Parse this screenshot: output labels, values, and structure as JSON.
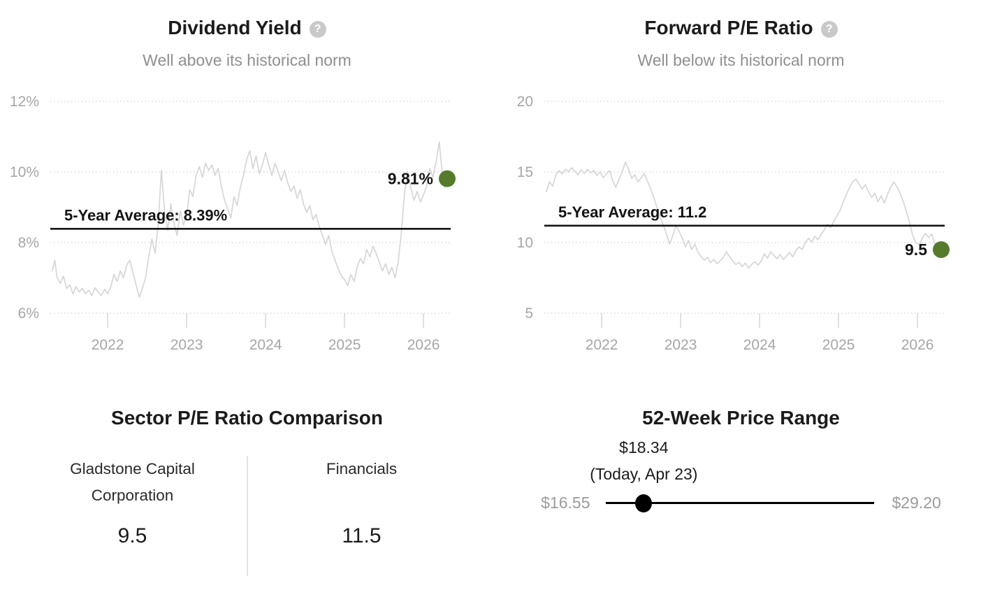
{
  "colors": {
    "accent_green": "#567b2d",
    "series_gray": "#d6d6d6",
    "grid_gray": "#d9d9d9",
    "axis_text": "#a6a6a6",
    "annotation_black": "#141414"
  },
  "help_icon_glyph": "?",
  "chart_data": [
    {
      "type": "line",
      "id": "dividend_yield",
      "title": "Dividend Yield",
      "subtitle": "Well above its historical norm",
      "grid": "dotted-horizontal",
      "legend": "none",
      "xlim": [
        2021.3,
        2026.3
      ],
      "x_ticks": [
        {
          "year": 2022,
          "label": "2022"
        },
        {
          "year": 2023,
          "label": "2023"
        },
        {
          "year": 2024,
          "label": "2024"
        },
        {
          "year": 2025,
          "label": "2025"
        },
        {
          "year": 2026,
          "label": "2026"
        }
      ],
      "y_ticks": [
        {
          "value": 12,
          "label": "12%"
        },
        {
          "value": 10,
          "label": "10%"
        },
        {
          "value": 8,
          "label": "8%"
        },
        {
          "value": 6,
          "label": "6%"
        }
      ],
      "average": {
        "value": 8.39,
        "label": "5-Year Average: 8.39%"
      },
      "current": {
        "value": 9.81,
        "label": "9.81%"
      },
      "points": [
        [
          2021.3,
          7.2
        ],
        [
          2021.33,
          7.5
        ],
        [
          2021.36,
          7.0
        ],
        [
          2021.4,
          6.85
        ],
        [
          2021.44,
          7.05
        ],
        [
          2021.48,
          6.7
        ],
        [
          2021.52,
          6.8
        ],
        [
          2021.56,
          6.55
        ],
        [
          2021.6,
          6.75
        ],
        [
          2021.64,
          6.6
        ],
        [
          2021.68,
          6.7
        ],
        [
          2021.72,
          6.55
        ],
        [
          2021.76,
          6.65
        ],
        [
          2021.8,
          6.5
        ],
        [
          2021.84,
          6.72
        ],
        [
          2021.88,
          6.6
        ],
        [
          2021.92,
          6.5
        ],
        [
          2021.96,
          6.68
        ],
        [
          2022.0,
          6.55
        ],
        [
          2022.04,
          6.75
        ],
        [
          2022.08,
          7.1
        ],
        [
          2022.12,
          6.9
        ],
        [
          2022.16,
          7.2
        ],
        [
          2022.2,
          7.0
        ],
        [
          2022.24,
          7.35
        ],
        [
          2022.28,
          7.5
        ],
        [
          2022.32,
          7.15
        ],
        [
          2022.36,
          6.8
        ],
        [
          2022.4,
          6.45
        ],
        [
          2022.44,
          6.7
        ],
        [
          2022.48,
          7.0
        ],
        [
          2022.52,
          7.6
        ],
        [
          2022.56,
          8.1
        ],
        [
          2022.6,
          7.7
        ],
        [
          2022.64,
          8.5
        ],
        [
          2022.68,
          10.05
        ],
        [
          2022.72,
          8.9
        ],
        [
          2022.76,
          8.35
        ],
        [
          2022.8,
          9.1
        ],
        [
          2022.84,
          8.55
        ],
        [
          2022.88,
          8.2
        ],
        [
          2022.92,
          8.9
        ],
        [
          2022.96,
          8.5
        ],
        [
          2023.0,
          8.75
        ],
        [
          2023.04,
          9.5
        ],
        [
          2023.08,
          9.3
        ],
        [
          2023.12,
          9.9
        ],
        [
          2023.16,
          10.15
        ],
        [
          2023.2,
          9.85
        ],
        [
          2023.24,
          10.25
        ],
        [
          2023.28,
          10.05
        ],
        [
          2023.32,
          10.2
        ],
        [
          2023.36,
          9.9
        ],
        [
          2023.4,
          10.1
        ],
        [
          2023.44,
          9.6
        ],
        [
          2023.48,
          9.2
        ],
        [
          2023.52,
          8.95
        ],
        [
          2023.56,
          8.7
        ],
        [
          2023.6,
          9.3
        ],
        [
          2023.64,
          9.05
        ],
        [
          2023.68,
          9.55
        ],
        [
          2023.72,
          9.9
        ],
        [
          2023.76,
          10.35
        ],
        [
          2023.8,
          10.6
        ],
        [
          2023.84,
          10.1
        ],
        [
          2023.88,
          10.45
        ],
        [
          2023.92,
          9.95
        ],
        [
          2023.96,
          10.2
        ],
        [
          2024.0,
          10.55
        ],
        [
          2024.04,
          10.2
        ],
        [
          2024.08,
          9.9
        ],
        [
          2024.12,
          10.25
        ],
        [
          2024.16,
          10.0
        ],
        [
          2024.2,
          9.75
        ],
        [
          2024.24,
          10.05
        ],
        [
          2024.28,
          9.7
        ],
        [
          2024.32,
          9.45
        ],
        [
          2024.36,
          9.6
        ],
        [
          2024.4,
          9.25
        ],
        [
          2024.44,
          9.5
        ],
        [
          2024.48,
          9.1
        ],
        [
          2024.52,
          8.85
        ],
        [
          2024.56,
          9.05
        ],
        [
          2024.6,
          8.65
        ],
        [
          2024.64,
          8.8
        ],
        [
          2024.68,
          8.45
        ],
        [
          2024.72,
          8.2
        ],
        [
          2024.76,
          7.95
        ],
        [
          2024.8,
          8.2
        ],
        [
          2024.84,
          7.75
        ],
        [
          2024.88,
          7.5
        ],
        [
          2024.92,
          7.25
        ],
        [
          2024.96,
          7.05
        ],
        [
          2025.0,
          6.95
        ],
        [
          2025.04,
          6.78
        ],
        [
          2025.08,
          7.1
        ],
        [
          2025.12,
          6.9
        ],
        [
          2025.16,
          7.3
        ],
        [
          2025.2,
          7.55
        ],
        [
          2025.24,
          7.4
        ],
        [
          2025.28,
          7.8
        ],
        [
          2025.32,
          7.6
        ],
        [
          2025.36,
          7.9
        ],
        [
          2025.4,
          7.7
        ],
        [
          2025.44,
          7.45
        ],
        [
          2025.48,
          7.2
        ],
        [
          2025.52,
          7.4
        ],
        [
          2025.56,
          7.1
        ],
        [
          2025.6,
          7.3
        ],
        [
          2025.64,
          7.0
        ],
        [
          2025.68,
          7.45
        ],
        [
          2025.72,
          8.3
        ],
        [
          2025.76,
          9.4
        ],
        [
          2025.8,
          10.0
        ],
        [
          2025.84,
          9.55
        ],
        [
          2025.88,
          9.2
        ],
        [
          2025.92,
          9.45
        ],
        [
          2025.96,
          9.15
        ],
        [
          2026.0,
          9.35
        ],
        [
          2026.04,
          9.6
        ],
        [
          2026.08,
          10.1
        ],
        [
          2026.12,
          9.85
        ],
        [
          2026.16,
          10.3
        ],
        [
          2026.2,
          10.85
        ],
        [
          2026.24,
          9.9
        ],
        [
          2026.27,
          9.55
        ],
        [
          2026.3,
          9.81
        ]
      ]
    },
    {
      "type": "line",
      "id": "forward_pe_ratio",
      "title": "Forward P/E Ratio",
      "subtitle": "Well below its historical norm",
      "grid": "dotted-horizontal",
      "legend": "none",
      "xlim": [
        2021.3,
        2026.3
      ],
      "x_ticks": [
        {
          "year": 2022,
          "label": "2022"
        },
        {
          "year": 2023,
          "label": "2023"
        },
        {
          "year": 2024,
          "label": "2024"
        },
        {
          "year": 2025,
          "label": "2025"
        },
        {
          "year": 2026,
          "label": "2026"
        }
      ],
      "y_ticks": [
        {
          "value": 20,
          "label": "20"
        },
        {
          "value": 15,
          "label": "15"
        },
        {
          "value": 10,
          "label": "10"
        },
        {
          "value": 5,
          "label": "5"
        }
      ],
      "average": {
        "value": 11.2,
        "label": "5-Year Average: 11.2"
      },
      "current": {
        "value": 9.5,
        "label": "9.5"
      },
      "points": [
        [
          2021.3,
          13.6
        ],
        [
          2021.34,
          14.3
        ],
        [
          2021.38,
          14.0
        ],
        [
          2021.42,
          14.8
        ],
        [
          2021.46,
          15.1
        ],
        [
          2021.5,
          14.85
        ],
        [
          2021.54,
          15.2
        ],
        [
          2021.58,
          15.0
        ],
        [
          2021.62,
          15.3
        ],
        [
          2021.66,
          15.05
        ],
        [
          2021.7,
          14.8
        ],
        [
          2021.74,
          15.15
        ],
        [
          2021.78,
          14.9
        ],
        [
          2021.82,
          15.2
        ],
        [
          2021.86,
          14.95
        ],
        [
          2021.9,
          15.1
        ],
        [
          2021.94,
          14.75
        ],
        [
          2021.98,
          15.0
        ],
        [
          2022.02,
          14.6
        ],
        [
          2022.06,
          14.85
        ],
        [
          2022.1,
          15.1
        ],
        [
          2022.14,
          14.4
        ],
        [
          2022.18,
          13.9
        ],
        [
          2022.22,
          14.5
        ],
        [
          2022.26,
          15.0
        ],
        [
          2022.3,
          15.7
        ],
        [
          2022.34,
          15.2
        ],
        [
          2022.38,
          14.55
        ],
        [
          2022.42,
          14.8
        ],
        [
          2022.46,
          14.3
        ],
        [
          2022.5,
          14.6
        ],
        [
          2022.54,
          14.9
        ],
        [
          2022.58,
          14.35
        ],
        [
          2022.62,
          13.8
        ],
        [
          2022.66,
          13.2
        ],
        [
          2022.7,
          12.5
        ],
        [
          2022.74,
          11.8
        ],
        [
          2022.78,
          11.3
        ],
        [
          2022.82,
          10.6
        ],
        [
          2022.86,
          9.9
        ],
        [
          2022.9,
          10.5
        ],
        [
          2022.94,
          11.2
        ],
        [
          2022.98,
          10.8
        ],
        [
          2023.02,
          10.3
        ],
        [
          2023.06,
          9.7
        ],
        [
          2023.1,
          10.15
        ],
        [
          2023.14,
          9.5
        ],
        [
          2023.18,
          9.9
        ],
        [
          2023.22,
          9.3
        ],
        [
          2023.26,
          9.0
        ],
        [
          2023.3,
          8.75
        ],
        [
          2023.34,
          8.95
        ],
        [
          2023.38,
          8.6
        ],
        [
          2023.42,
          8.8
        ],
        [
          2023.46,
          8.5
        ],
        [
          2023.5,
          8.7
        ],
        [
          2023.54,
          8.95
        ],
        [
          2023.58,
          9.35
        ],
        [
          2023.62,
          9.0
        ],
        [
          2023.66,
          8.7
        ],
        [
          2023.7,
          8.45
        ],
        [
          2023.74,
          8.6
        ],
        [
          2023.78,
          8.3
        ],
        [
          2023.82,
          8.55
        ],
        [
          2023.86,
          8.2
        ],
        [
          2023.9,
          8.45
        ],
        [
          2023.94,
          8.65
        ],
        [
          2023.98,
          8.4
        ],
        [
          2024.02,
          8.7
        ],
        [
          2024.06,
          9.2
        ],
        [
          2024.1,
          8.9
        ],
        [
          2024.14,
          9.35
        ],
        [
          2024.18,
          9.1
        ],
        [
          2024.22,
          8.85
        ],
        [
          2024.26,
          9.15
        ],
        [
          2024.3,
          8.8
        ],
        [
          2024.34,
          9.05
        ],
        [
          2024.38,
          9.3
        ],
        [
          2024.42,
          9.0
        ],
        [
          2024.46,
          9.45
        ],
        [
          2024.5,
          9.7
        ],
        [
          2024.54,
          9.5
        ],
        [
          2024.58,
          10.0
        ],
        [
          2024.62,
          10.3
        ],
        [
          2024.66,
          10.05
        ],
        [
          2024.7,
          10.45
        ],
        [
          2024.74,
          10.2
        ],
        [
          2024.78,
          10.6
        ],
        [
          2024.82,
          10.9
        ],
        [
          2024.86,
          11.3
        ],
        [
          2024.9,
          11.05
        ],
        [
          2024.94,
          11.5
        ],
        [
          2024.98,
          11.9
        ],
        [
          2025.02,
          12.3
        ],
        [
          2025.06,
          12.9
        ],
        [
          2025.1,
          13.4
        ],
        [
          2025.14,
          13.9
        ],
        [
          2025.18,
          14.3
        ],
        [
          2025.22,
          14.5
        ],
        [
          2025.26,
          14.15
        ],
        [
          2025.3,
          13.8
        ],
        [
          2025.34,
          14.1
        ],
        [
          2025.38,
          13.6
        ],
        [
          2025.42,
          13.2
        ],
        [
          2025.46,
          13.5
        ],
        [
          2025.5,
          12.9
        ],
        [
          2025.54,
          13.3
        ],
        [
          2025.58,
          12.8
        ],
        [
          2025.62,
          13.4
        ],
        [
          2025.66,
          13.9
        ],
        [
          2025.7,
          14.3
        ],
        [
          2025.74,
          13.95
        ],
        [
          2025.78,
          13.5
        ],
        [
          2025.82,
          12.9
        ],
        [
          2025.86,
          12.2
        ],
        [
          2025.9,
          11.4
        ],
        [
          2025.94,
          10.5
        ],
        [
          2025.98,
          10.0
        ],
        [
          2026.02,
          9.8
        ],
        [
          2026.06,
          10.3
        ],
        [
          2026.1,
          10.65
        ],
        [
          2026.14,
          10.35
        ],
        [
          2026.18,
          10.6
        ],
        [
          2026.22,
          9.9
        ],
        [
          2026.25,
          9.2
        ],
        [
          2026.28,
          8.9
        ],
        [
          2026.3,
          9.5
        ]
      ]
    },
    {
      "type": "table",
      "id": "sector_pe_comparison",
      "title": "Sector P/E Ratio Comparison",
      "columns": [
        {
          "label": "Gladstone Capital Corporation",
          "value": "9.5"
        },
        {
          "label": "Financials",
          "value": "11.5"
        }
      ]
    },
    {
      "type": "range",
      "id": "price_range_52_week",
      "title": "52-Week Price Range",
      "low": {
        "value": 16.55,
        "label": "$16.55"
      },
      "high": {
        "value": 29.2,
        "label": "$29.20"
      },
      "current": {
        "value": 18.34,
        "label": "$18.34",
        "sublabel": "(Today, Apr 23)"
      }
    }
  ]
}
